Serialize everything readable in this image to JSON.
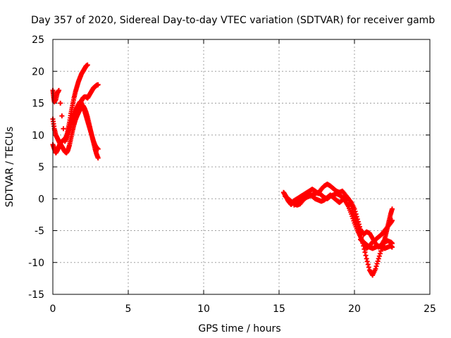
{
  "chart_data": {
    "type": "scatter",
    "title": "Day 357 of 2020, Sidereal Day-to-day VTEC variation (SDTVAR) for receiver gamb",
    "xlabel": "GPS time / hours",
    "ylabel": "SDTVAR / TECUs",
    "xlim": [
      0,
      25
    ],
    "ylim": [
      -15,
      25
    ],
    "xticks": [
      0,
      5,
      10,
      15,
      20,
      25
    ],
    "yticks": [
      -15,
      -10,
      -5,
      0,
      5,
      10,
      15,
      20,
      25
    ],
    "grid": true,
    "marker": "+",
    "color": "#ff0000",
    "series": [
      {
        "values": [
          [
            0.0,
            12.5
          ],
          [
            0.1,
            11.0
          ],
          [
            0.2,
            10.0
          ],
          [
            0.3,
            9.5
          ],
          [
            0.4,
            9.0
          ],
          [
            0.5,
            8.6
          ],
          [
            0.6,
            8.2
          ],
          [
            0.7,
            7.8
          ],
          [
            0.8,
            7.4
          ],
          [
            0.9,
            7.2
          ],
          [
            1.0,
            7.6
          ],
          [
            1.1,
            8.4
          ],
          [
            1.2,
            9.5
          ],
          [
            1.3,
            10.6
          ],
          [
            1.4,
            11.6
          ],
          [
            1.5,
            12.4
          ],
          [
            1.6,
            13.0
          ],
          [
            1.7,
            13.5
          ],
          [
            1.8,
            14.0
          ],
          [
            1.9,
            14.4
          ],
          [
            2.0,
            14.6
          ],
          [
            2.1,
            14.2
          ],
          [
            2.2,
            13.6
          ],
          [
            2.3,
            12.8
          ],
          [
            2.4,
            11.8
          ],
          [
            2.5,
            10.8
          ],
          [
            2.6,
            9.8
          ],
          [
            2.7,
            8.8
          ],
          [
            2.8,
            7.8
          ],
          [
            2.9,
            7.0
          ],
          [
            3.0,
            6.4
          ]
        ]
      },
      {
        "values": [
          [
            0.0,
            8.5
          ],
          [
            0.1,
            7.8
          ],
          [
            0.2,
            7.2
          ],
          [
            0.3,
            7.6
          ],
          [
            0.4,
            8.2
          ],
          [
            0.5,
            8.8
          ],
          [
            0.6,
            9.0
          ],
          [
            0.7,
            9.2
          ],
          [
            0.8,
            9.4
          ],
          [
            0.9,
            9.8
          ],
          [
            1.0,
            10.4
          ],
          [
            1.1,
            11.2
          ],
          [
            1.2,
            12.0
          ],
          [
            1.3,
            12.6
          ],
          [
            1.4,
            13.2
          ],
          [
            1.5,
            13.8
          ],
          [
            1.6,
            14.3
          ],
          [
            1.7,
            14.8
          ],
          [
            1.8,
            15.2
          ],
          [
            1.9,
            15.0
          ],
          [
            2.0,
            14.4
          ],
          [
            2.1,
            13.8
          ],
          [
            2.2,
            13.0
          ],
          [
            2.3,
            12.2
          ],
          [
            2.4,
            11.4
          ],
          [
            2.5,
            10.6
          ],
          [
            2.6,
            9.8
          ],
          [
            2.7,
            9.0
          ],
          [
            2.8,
            8.4
          ],
          [
            2.9,
            8.0
          ],
          [
            3.0,
            7.8
          ]
        ]
      },
      {
        "values": [
          [
            0.0,
            17.0
          ],
          [
            0.05,
            16.0
          ],
          [
            0.1,
            15.2
          ],
          [
            0.2,
            15.6
          ],
          [
            0.3,
            16.6
          ],
          [
            0.4,
            17.0
          ],
          [
            0.8,
            9.0
          ],
          [
            0.9,
            9.6
          ],
          [
            1.0,
            10.8
          ],
          [
            1.1,
            12.0
          ],
          [
            1.2,
            13.4
          ],
          [
            1.3,
            14.6
          ],
          [
            1.4,
            15.8
          ],
          [
            1.5,
            16.8
          ],
          [
            1.6,
            17.6
          ],
          [
            1.7,
            18.4
          ],
          [
            1.8,
            19.0
          ],
          [
            1.9,
            19.6
          ],
          [
            2.0,
            20.0
          ],
          [
            2.1,
            20.4
          ],
          [
            2.2,
            20.8
          ],
          [
            2.3,
            21.0
          ]
        ]
      },
      {
        "values": [
          [
            1.8,
            15.0
          ],
          [
            1.9,
            15.4
          ],
          [
            2.0,
            15.8
          ],
          [
            2.1,
            16.0
          ],
          [
            2.2,
            16.0
          ],
          [
            2.3,
            15.8
          ],
          [
            2.4,
            16.2
          ],
          [
            2.5,
            16.6
          ],
          [
            2.6,
            17.0
          ],
          [
            2.7,
            17.4
          ],
          [
            2.8,
            17.6
          ],
          [
            2.9,
            17.8
          ],
          [
            3.0,
            17.9
          ]
        ]
      },
      {
        "values": [
          [
            15.3,
            1.0
          ],
          [
            15.4,
            0.6
          ],
          [
            15.5,
            0.2
          ],
          [
            15.6,
            -0.3
          ],
          [
            15.7,
            -0.6
          ],
          [
            15.8,
            -0.9
          ],
          [
            15.9,
            -0.6
          ],
          [
            16.0,
            -0.3
          ],
          [
            16.2,
            0.0
          ],
          [
            16.4,
            0.3
          ],
          [
            16.6,
            0.6
          ],
          [
            16.8,
            0.9
          ],
          [
            17.0,
            1.2
          ],
          [
            17.2,
            1.5
          ],
          [
            17.4,
            1.2
          ],
          [
            17.6,
            0.8
          ],
          [
            17.8,
            1.5
          ],
          [
            18.0,
            2.0
          ],
          [
            18.2,
            2.3
          ],
          [
            18.4,
            2.0
          ],
          [
            18.6,
            1.6
          ],
          [
            18.8,
            1.2
          ],
          [
            19.0,
            1.0
          ],
          [
            19.2,
            1.2
          ],
          [
            19.4,
            0.6
          ],
          [
            19.6,
            0.0
          ],
          [
            19.8,
            -1.2
          ],
          [
            20.0,
            -2.6
          ],
          [
            20.2,
            -4.0
          ],
          [
            20.4,
            -5.6
          ],
          [
            20.6,
            -7.4
          ],
          [
            20.8,
            -9.4
          ],
          [
            21.0,
            -11.2
          ],
          [
            21.2,
            -12.0
          ],
          [
            21.4,
            -11.0
          ],
          [
            21.6,
            -9.4
          ],
          [
            21.8,
            -7.8
          ],
          [
            22.0,
            -6.8
          ],
          [
            22.2,
            -6.6
          ],
          [
            22.4,
            -6.8
          ],
          [
            22.5,
            -7.0
          ]
        ]
      },
      {
        "values": [
          [
            15.4,
            0.4
          ],
          [
            15.6,
            0.0
          ],
          [
            15.8,
            -0.4
          ],
          [
            16.0,
            -0.8
          ],
          [
            16.2,
            -1.0
          ],
          [
            16.4,
            -0.8
          ],
          [
            16.6,
            -0.2
          ],
          [
            16.8,
            0.2
          ],
          [
            17.0,
            0.4
          ],
          [
            17.2,
            0.6
          ],
          [
            17.4,
            0.8
          ],
          [
            17.6,
            1.0
          ],
          [
            17.8,
            0.6
          ],
          [
            18.0,
            0.2
          ],
          [
            18.2,
            0.0
          ],
          [
            18.4,
            0.4
          ],
          [
            18.6,
            0.6
          ],
          [
            18.8,
            0.8
          ],
          [
            19.0,
            0.6
          ],
          [
            19.2,
            0.2
          ],
          [
            19.4,
            -0.4
          ],
          [
            19.6,
            -1.2
          ],
          [
            19.8,
            -2.4
          ],
          [
            20.0,
            -3.8
          ],
          [
            20.2,
            -5.0
          ],
          [
            20.4,
            -6.0
          ],
          [
            20.6,
            -7.0
          ],
          [
            20.8,
            -7.8
          ],
          [
            21.0,
            -7.4
          ],
          [
            21.2,
            -6.8
          ],
          [
            21.4,
            -6.4
          ],
          [
            21.6,
            -6.0
          ],
          [
            21.8,
            -5.6
          ],
          [
            22.0,
            -5.0
          ],
          [
            22.2,
            -4.4
          ],
          [
            22.4,
            -3.8
          ],
          [
            22.5,
            -3.4
          ]
        ]
      },
      {
        "values": [
          [
            16.0,
            -1.0
          ],
          [
            16.2,
            -0.6
          ],
          [
            16.4,
            -0.2
          ],
          [
            16.6,
            0.2
          ],
          [
            16.8,
            0.6
          ],
          [
            17.0,
            0.8
          ],
          [
            17.2,
            0.4
          ],
          [
            17.4,
            0.0
          ],
          [
            17.6,
            -0.2
          ],
          [
            17.8,
            -0.4
          ],
          [
            18.0,
            -0.2
          ],
          [
            18.2,
            0.2
          ],
          [
            18.4,
            0.6
          ],
          [
            18.6,
            0.2
          ],
          [
            18.8,
            -0.2
          ],
          [
            19.0,
            -0.6
          ],
          [
            19.2,
            -0.2
          ],
          [
            19.4,
            0.4
          ],
          [
            19.6,
            0.0
          ],
          [
            19.8,
            -0.6
          ],
          [
            20.0,
            -1.6
          ],
          [
            20.2,
            -3.2
          ],
          [
            20.4,
            -4.8
          ],
          [
            20.6,
            -5.6
          ],
          [
            20.8,
            -5.2
          ],
          [
            21.0,
            -5.4
          ],
          [
            21.2,
            -6.2
          ],
          [
            21.4,
            -7.0
          ],
          [
            21.6,
            -7.6
          ],
          [
            21.8,
            -7.2
          ],
          [
            22.0,
            -6.4
          ],
          [
            22.1,
            -5.4
          ],
          [
            22.2,
            -4.4
          ],
          [
            22.3,
            -3.4
          ],
          [
            22.4,
            -2.4
          ],
          [
            22.5,
            -1.6
          ]
        ]
      },
      {
        "values": [
          [
            20.4,
            -6.4
          ],
          [
            20.6,
            -6.8
          ],
          [
            20.8,
            -7.2
          ],
          [
            21.0,
            -7.6
          ],
          [
            21.2,
            -7.8
          ],
          [
            21.4,
            -7.6
          ],
          [
            21.6,
            -7.4
          ],
          [
            21.8,
            -7.6
          ],
          [
            22.0,
            -7.8
          ],
          [
            22.2,
            -7.6
          ],
          [
            22.4,
            -7.4
          ],
          [
            22.5,
            -7.6
          ]
        ]
      }
    ]
  }
}
